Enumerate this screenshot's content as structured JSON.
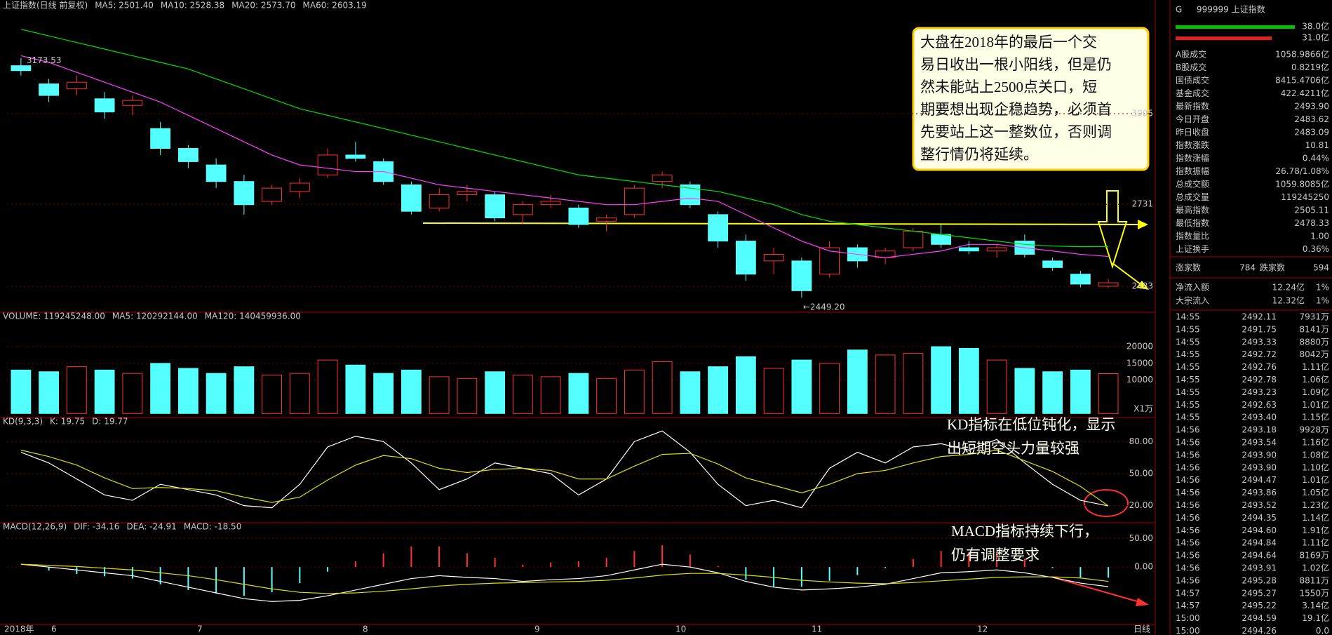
{
  "chart_data": [
    {
      "type": "candlestick",
      "header": [
        {
          "text": "上证指数(日线 前复权)",
          "color": "#c8c8c8"
        },
        {
          "text": "MA5: 2501.40",
          "color": "#ffffff"
        },
        {
          "text": "MA10: 2528.38",
          "color": "#ffff00"
        },
        {
          "text": "MA20: 2573.70",
          "color": "#ff40ff"
        },
        {
          "text": "MA60: 2603.19",
          "color": "#00e000"
        }
      ],
      "candles": [
        [
          3150,
          3173.53,
          3120,
          3135
        ],
        [
          3095,
          3110,
          3040,
          3060
        ],
        [
          3080,
          3120,
          3060,
          3100
        ],
        [
          3050,
          3070,
          2990,
          3010
        ],
        [
          3030,
          3060,
          3000,
          3045
        ],
        [
          2960,
          2980,
          2880,
          2900
        ],
        [
          2900,
          2910,
          2840,
          2860
        ],
        [
          2850,
          2870,
          2780,
          2800
        ],
        [
          2800,
          2820,
          2700,
          2730
        ],
        [
          2740,
          2790,
          2730,
          2780
        ],
        [
          2770,
          2810,
          2750,
          2795
        ],
        [
          2820,
          2900,
          2810,
          2880
        ],
        [
          2880,
          2920,
          2860,
          2870
        ],
        [
          2860,
          2870,
          2790,
          2800
        ],
        [
          2790,
          2800,
          2700,
          2710
        ],
        [
          2720,
          2780,
          2710,
          2760
        ],
        [
          2760,
          2790,
          2740,
          2770
        ],
        [
          2760,
          2770,
          2680,
          2690
        ],
        [
          2700,
          2740,
          2670,
          2730
        ],
        [
          2730,
          2760,
          2720,
          2740
        ],
        [
          2720,
          2730,
          2660,
          2670
        ],
        [
          2680,
          2700,
          2650,
          2690
        ],
        [
          2700,
          2790,
          2690,
          2780
        ],
        [
          2800,
          2830,
          2780,
          2820
        ],
        [
          2790,
          2800,
          2720,
          2730
        ],
        [
          2700,
          2710,
          2600,
          2620
        ],
        [
          2620,
          2640,
          2500,
          2520
        ],
        [
          2560,
          2600,
          2520,
          2580
        ],
        [
          2560,
          2570,
          2449.2,
          2470
        ],
        [
          2520,
          2620,
          2510,
          2600
        ],
        [
          2600,
          2610,
          2540,
          2560
        ],
        [
          2570,
          2600,
          2550,
          2590
        ],
        [
          2600,
          2660,
          2590,
          2650
        ],
        [
          2640,
          2670,
          2600,
          2610
        ],
        [
          2600,
          2620,
          2580,
          2590
        ],
        [
          2590,
          2610,
          2570,
          2600
        ],
        [
          2620,
          2640,
          2570,
          2580
        ],
        [
          2560,
          2570,
          2530,
          2540
        ],
        [
          2520,
          2530,
          2480,
          2490
        ],
        [
          2483.62,
          2505.11,
          2478.33,
          2493.9
        ]
      ],
      "up_color": "#ff3232",
      "down_color": "#54ffff",
      "series": [
        {
          "color": "#ff40ff",
          "values": [
            3180,
            3160,
            3130,
            3100,
            3070,
            3040,
            3000,
            2960,
            2920,
            2880,
            2850,
            2840,
            2830,
            2830,
            2810,
            2790,
            2780,
            2770,
            2760,
            2750,
            2740,
            2730,
            2730,
            2740,
            2750,
            2740,
            2700,
            2660,
            2620,
            2590,
            2580,
            2570,
            2580,
            2590,
            2610,
            2610,
            2600,
            2590,
            2580,
            2573.7
          ]
        },
        {
          "color": "#00e000",
          "values": [
            3260,
            3240,
            3220,
            3200,
            3180,
            3160,
            3140,
            3110,
            3080,
            3050,
            3020,
            3000,
            2980,
            2960,
            2940,
            2920,
            2900,
            2880,
            2860,
            2840,
            2820,
            2810,
            2800,
            2790,
            2780,
            2770,
            2750,
            2730,
            2700,
            2680,
            2670,
            2660,
            2650,
            2640,
            2630,
            2620,
            2610,
            2605,
            2603,
            2603.19
          ]
        }
      ],
      "ylim": [
        2405,
        3323
      ],
      "yticks": [
        2483,
        2731,
        3005
      ],
      "high_label": "3173.53",
      "low_label": "←2449.20",
      "note_lines": [
        "大盘在2018年的最后一个交",
        "易日收出一根小阳线，但是仍",
        "然未能站上2500点关口，短",
        "期要想出现企稳趋势，必须首",
        "先要站上这一整数位，否则调",
        "整行情仍将延续。"
      ]
    },
    {
      "type": "bar",
      "header": [
        {
          "text": "VOLUME: 119245248.00",
          "color": "#c8c8c8"
        },
        {
          "text": "MA5: 120292144.00",
          "color": "#ffffff"
        },
        {
          "text": "MA120: 140459936.00",
          "color": "#ffff00"
        }
      ],
      "values": [
        13000,
        12500,
        14000,
        13000,
        12000,
        15000,
        13500,
        12000,
        14000,
        11500,
        12000,
        16000,
        14500,
        12000,
        13000,
        11000,
        10500,
        12500,
        11500,
        11000,
        12000,
        10500,
        13000,
        15500,
        12500,
        14000,
        17000,
        13500,
        16000,
        15000,
        19000,
        17500,
        18000,
        20000,
        19500,
        16000,
        13500,
        12500,
        13000,
        11924.5
      ],
      "ylim": [
        -1200,
        28200
      ],
      "yticks": [
        10000,
        15000,
        20000
      ],
      "unit_label": "X1万"
    },
    {
      "type": "line",
      "header": [
        {
          "text": "KD(9,3,3)",
          "color": "#c8c8c8"
        },
        {
          "text": "K: 19.75",
          "color": "#ffffff"
        },
        {
          "text": "D: 19.77",
          "color": "#ffff00"
        }
      ],
      "series": [
        {
          "color": "#ffffff",
          "values": [
            70,
            60,
            45,
            30,
            25,
            40,
            35,
            30,
            20,
            18,
            40,
            75,
            85,
            80,
            60,
            35,
            45,
            60,
            55,
            50,
            30,
            45,
            80,
            90,
            70,
            40,
            20,
            25,
            18,
            55,
            70,
            60,
            75,
            78,
            72,
            82,
            60,
            40,
            25,
            19.75
          ]
        },
        {
          "color": "#e0e000",
          "values": [
            72,
            66,
            58,
            46,
            36,
            37,
            36,
            34,
            28,
            23,
            28,
            44,
            58,
            67,
            64,
            55,
            51,
            54,
            55,
            53,
            45,
            45,
            57,
            68,
            69,
            59,
            46,
            39,
            32,
            40,
            50,
            53,
            60,
            66,
            68,
            72,
            62,
            52,
            38,
            19.77
          ]
        }
      ],
      "ylim": [
        4,
        96
      ],
      "yticks": [
        {
          "value": 20,
          "label": "20.00"
        },
        {
          "value": 50,
          "label": "50.00"
        },
        {
          "value": 80,
          "label": "80.00"
        }
      ],
      "note_lines": [
        "KD指标在低位钝化，显示",
        "出短期空头力量较强"
      ]
    },
    {
      "type": "macd",
      "header": [
        {
          "text": "MACD(12,26,9)",
          "color": "#c8c8c8"
        },
        {
          "text": "DIF: -34.16",
          "color": "#ffffff"
        },
        {
          "text": "DEA: -24.91",
          "color": "#ffff00"
        },
        {
          "text": "MACD: -18.50",
          "color": "#ff40ff"
        }
      ],
      "histogram": [
        0,
        -6,
        -12,
        -16,
        -20,
        -30,
        -40,
        -46,
        -50,
        -44,
        -28,
        -8,
        10,
        24,
        36,
        36,
        24,
        16,
        4,
        8,
        10,
        16,
        28,
        38,
        22,
        2,
        -22,
        -34,
        -34,
        -24,
        -14,
        -2,
        14,
        28,
        26,
        26,
        14,
        -2,
        -18,
        -18.5
      ],
      "series": [
        {
          "color": "#ffffff",
          "values": [
            5,
            0,
            -5,
            -10,
            -15,
            -25,
            -35,
            -45,
            -55,
            -60,
            -58,
            -50,
            -40,
            -30,
            -20,
            -15,
            -18,
            -20,
            -25,
            -22,
            -20,
            -15,
            -5,
            5,
            0,
            -10,
            -25,
            -35,
            -40,
            -38,
            -35,
            -30,
            -20,
            -10,
            -8,
            -5,
            -10,
            -18,
            -28,
            -34.16
          ]
        },
        {
          "color": "#e0e000",
          "values": [
            5,
            3,
            1,
            -2,
            -5,
            -10,
            -15,
            -22,
            -30,
            -38,
            -44,
            -46,
            -45,
            -42,
            -38,
            -33,
            -30,
            -28,
            -27,
            -26,
            -25,
            -23,
            -19,
            -14,
            -11,
            -11,
            -14,
            -18,
            -23,
            -26,
            -28,
            -29,
            -27,
            -24,
            -21,
            -18,
            -17,
            -17,
            -19,
            -24.91
          ]
        }
      ],
      "ylim": [
        -100,
        65
      ],
      "yticks": [
        {
          "value": 0,
          "label": "0.00"
        },
        {
          "value": 50,
          "label": "50.00"
        }
      ],
      "note_lines": [
        "MACD指标持续下行，",
        "仍有调整要求"
      ]
    }
  ],
  "x_axis": {
    "labels": [
      "2018年",
      "6",
      "7",
      "8",
      "9",
      "10",
      "11",
      "12"
    ],
    "period": "日线"
  },
  "quote_panel": {
    "flag": "G",
    "title": "999999 上证指数",
    "bars": [
      "38.0亿",
      "31.0亿"
    ],
    "rows": [
      {
        "label": "A股成交",
        "value": "1058.9866亿",
        "color": "#e0e0e0"
      },
      {
        "label": "B股成交",
        "value": "0.8219亿",
        "color": "#e0e0e0"
      },
      {
        "label": "国债成交",
        "value": "8415.4706亿",
        "color": "#e0e0e0"
      },
      {
        "label": "基金成交",
        "value": "422.4211亿",
        "color": "#e0e0e0"
      },
      {
        "label": "最新指数",
        "value": "2493.90",
        "color": "#ff4040"
      },
      {
        "label": "今日开盘",
        "value": "2483.62",
        "color": "#ff4040"
      },
      {
        "label": "昨日收盘",
        "value": "2483.09",
        "color": "#e0e0e0"
      },
      {
        "label": "指数涨跌",
        "value": "10.81",
        "color": "#ff4040"
      },
      {
        "label": "指数涨幅",
        "value": "0.44%",
        "color": "#ff4040"
      },
      {
        "label": "指数振幅",
        "value": "26.78/1.08%",
        "color": "#e0e0e0"
      },
      {
        "label": "总成交额",
        "value": "1059.8085亿",
        "color": "#e0e0e0"
      },
      {
        "label": "总成交量",
        "value": "119245250",
        "color": "#e0e0e0"
      },
      {
        "label": "最高指数",
        "value": "2505.11",
        "color": "#ff4040"
      },
      {
        "label": "最低指数",
        "value": "2478.33",
        "color": "#ff4040"
      },
      {
        "label": "指数量比",
        "value": "1.00",
        "color": "#ff4040"
      },
      {
        "label": "上证换手",
        "value": "0.36%",
        "color": "#e0e0e0"
      }
    ],
    "breadth": [
      "涨家数",
      "784",
      "跌家数",
      "594"
    ],
    "flows": [
      [
        "净流入额",
        "12.24亿",
        "1%"
      ],
      [
        "大宗流入",
        "12.32亿",
        "1%"
      ]
    ],
    "ticks": [
      [
        "14:55",
        "2492.11",
        "7931万"
      ],
      [
        "14:55",
        "2491.75",
        "8141万"
      ],
      [
        "14:55",
        "2493.33",
        "8880万"
      ],
      [
        "14:55",
        "2492.72",
        "8042万"
      ],
      [
        "14:55",
        "2492.76",
        "1.11亿"
      ],
      [
        "14:55",
        "2492.78",
        "1.06亿"
      ],
      [
        "14:55",
        "2493.23",
        "1.09亿"
      ],
      [
        "14:55",
        "2492.63",
        "1.01亿"
      ],
      [
        "14:55",
        "2493.40",
        "1.15亿"
      ],
      [
        "14:56",
        "2493.18",
        "9928万"
      ],
      [
        "14:56",
        "2493.54",
        "1.16亿"
      ],
      [
        "14:56",
        "2493.90",
        "1.08亿"
      ],
      [
        "14:56",
        "2493.90",
        "1.10亿"
      ],
      [
        "14:56",
        "2494.47",
        "1.01亿"
      ],
      [
        "14:56",
        "2493.86",
        "1.05亿"
      ],
      [
        "14:56",
        "2493.52",
        "1.23亿"
      ],
      [
        "14:56",
        "2494.35",
        "1.14亿"
      ],
      [
        "14:56",
        "2494.60",
        "1.91亿"
      ],
      [
        "14:56",
        "2494.84",
        "1.11亿"
      ],
      [
        "14:56",
        "2494.64",
        "8169万"
      ],
      [
        "14:56",
        "2493.91",
        "1.02亿"
      ],
      [
        "14:56",
        "2495.28",
        "8811万"
      ],
      [
        "14:57",
        "2495.27",
        "1550万"
      ],
      [
        "14:57",
        "2495.22",
        "3.14亿"
      ],
      [
        "15:00",
        "2494.59",
        "19.1亿"
      ],
      [
        "15:00",
        "2494.26",
        "0.0"
      ]
    ]
  }
}
